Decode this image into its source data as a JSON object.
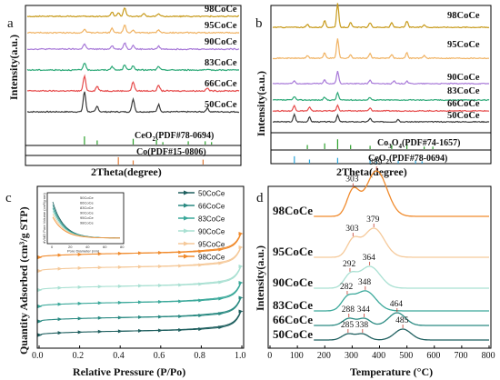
{
  "colors": {
    "c50": "#3a3a3a",
    "c66": "#e64a4a",
    "c83": "#2aa876",
    "c90": "#a778d8",
    "c95": "#f0b262",
    "c98": "#c79a1a",
    "ceo2": "#2ca02c",
    "co": "#e07b39",
    "co3o4": "#2ca02c",
    "ceo2b": "#2aa3d8",
    "sorb50": "#1f5f5f",
    "sorb66": "#2a8a82",
    "sorb83": "#3aa89a",
    "sorb90": "#a9e0d2",
    "sorb95": "#f5c99a",
    "sorb98": "#f08a2c"
  },
  "chart_data": [
    {
      "panel": "a",
      "type": "line",
      "xlabel": "2Theta(degree)",
      "ylabel": "Intensity(a.u.)",
      "series": [
        {
          "name": "50CoCe",
          "color_key": "c50",
          "peaks": [
            [
              0.27,
              22
            ],
            [
              0.33,
              6
            ],
            [
              0.5,
              14
            ],
            [
              0.62,
              8
            ],
            [
              0.85,
              4
            ]
          ]
        },
        {
          "name": "66CoCe",
          "color_key": "c66",
          "peaks": [
            [
              0.27,
              16
            ],
            [
              0.33,
              5
            ],
            [
              0.5,
              10
            ],
            [
              0.62,
              6
            ],
            [
              0.85,
              3
            ]
          ]
        },
        {
          "name": "83CoCe",
          "color_key": "c83",
          "peaks": [
            [
              0.27,
              8
            ],
            [
              0.4,
              4
            ],
            [
              0.46,
              6
            ],
            [
              0.5,
              5
            ],
            [
              0.62,
              4
            ]
          ]
        },
        {
          "name": "90CoCe",
          "color_key": "c90",
          "peaks": [
            [
              0.27,
              6
            ],
            [
              0.4,
              4
            ],
            [
              0.46,
              7
            ],
            [
              0.5,
              4
            ],
            [
              0.62,
              3
            ]
          ]
        },
        {
          "name": "95CoCe",
          "color_key": "c95",
          "peaks": [
            [
              0.27,
              4
            ],
            [
              0.4,
              5
            ],
            [
              0.46,
              9
            ],
            [
              0.5,
              3
            ],
            [
              0.62,
              3
            ]
          ]
        },
        {
          "name": "98CoCe",
          "color_key": "c98",
          "peaks": [
            [
              0.4,
              5
            ],
            [
              0.43,
              4
            ],
            [
              0.46,
              10
            ],
            [
              0.55,
              3
            ],
            [
              0.62,
              3
            ]
          ]
        }
      ],
      "references": [
        {
          "label": "CeO2(PDF#78-0694)",
          "color_key": "ceo2",
          "sticks": [
            [
              0.27,
              10
            ],
            [
              0.33,
              5
            ],
            [
              0.5,
              7
            ],
            [
              0.61,
              6
            ],
            [
              0.64,
              3
            ],
            [
              0.76,
              4
            ],
            [
              0.84,
              4
            ],
            [
              0.87,
              3
            ]
          ]
        },
        {
          "label": "Co(PDF#15-0806)",
          "color_key": "co",
          "sticks": [
            [
              0.43,
              9
            ],
            [
              0.5,
              5
            ],
            [
              0.83,
              6
            ]
          ]
        }
      ]
    },
    {
      "panel": "b",
      "type": "line",
      "xlabel": "2Theta(degree)",
      "ylabel": "Intensity(a.u.)",
      "series": [
        {
          "name": "50CoCe",
          "color_key": "c50",
          "peaks": [
            [
              0.1,
              8
            ],
            [
              0.17,
              5
            ],
            [
              0.3,
              7
            ],
            [
              0.45,
              4
            ],
            [
              0.58,
              3
            ]
          ]
        },
        {
          "name": "66CoCe",
          "color_key": "c66",
          "peaks": [
            [
              0.1,
              6
            ],
            [
              0.17,
              4
            ],
            [
              0.3,
              6
            ],
            [
              0.45,
              3
            ]
          ]
        },
        {
          "name": "83CoCe",
          "color_key": "c83",
          "peaks": [
            [
              0.1,
              4
            ],
            [
              0.24,
              3
            ],
            [
              0.3,
              8
            ],
            [
              0.45,
              3
            ]
          ]
        },
        {
          "name": "90CoCe",
          "color_key": "c90",
          "peaks": [
            [
              0.1,
              3
            ],
            [
              0.24,
              4
            ],
            [
              0.3,
              14
            ],
            [
              0.45,
              4
            ],
            [
              0.56,
              3
            ],
            [
              0.62,
              3
            ]
          ]
        },
        {
          "name": "95CoCe",
          "color_key": "c95",
          "peaks": [
            [
              0.16,
              3
            ],
            [
              0.24,
              6
            ],
            [
              0.3,
              22
            ],
            [
              0.36,
              4
            ],
            [
              0.45,
              5
            ],
            [
              0.55,
              4
            ],
            [
              0.62,
              6
            ],
            [
              0.7,
              3
            ]
          ]
        },
        {
          "name": "98CoCe",
          "color_key": "c98",
          "peaks": [
            [
              0.16,
              3
            ],
            [
              0.24,
              7
            ],
            [
              0.3,
              26
            ],
            [
              0.36,
              5
            ],
            [
              0.45,
              5
            ],
            [
              0.55,
              5
            ],
            [
              0.62,
              7
            ],
            [
              0.7,
              3
            ]
          ]
        }
      ],
      "references": [
        {
          "label": "Co3O4(PDF#74-1657)",
          "color_key": "co3o4",
          "sticks": [
            [
              0.16,
              5
            ],
            [
              0.24,
              7
            ],
            [
              0.3,
              12
            ],
            [
              0.36,
              5
            ],
            [
              0.45,
              4
            ],
            [
              0.55,
              5
            ],
            [
              0.62,
              7
            ],
            [
              0.7,
              3
            ],
            [
              0.74,
              3
            ]
          ]
        },
        {
          "label": "CeO2(PDF#78-0694)",
          "color_key": "ceo2b",
          "sticks": [
            [
              0.1,
              9
            ],
            [
              0.17,
              5
            ],
            [
              0.3,
              7
            ],
            [
              0.45,
              6
            ],
            [
              0.48,
              3
            ],
            [
              0.58,
              4
            ],
            [
              0.66,
              4
            ],
            [
              0.69,
              3
            ]
          ]
        }
      ]
    },
    {
      "panel": "c",
      "type": "line",
      "xlabel": "Relative Pressure (P/Po)",
      "ylabel": "Quantity Adsorbed (cm³/g STP)",
      "xlim": [
        0,
        1.0
      ],
      "xticks": [
        "0.0",
        "0.2",
        "0.4",
        "0.6",
        "0.8",
        "1.0"
      ],
      "series": [
        {
          "name": "50CoCe",
          "color_key": "sorb50",
          "base": 0.03
        },
        {
          "name": "66CoCe",
          "color_key": "sorb66",
          "base": 0.13
        },
        {
          "name": "83CoCe",
          "color_key": "sorb83",
          "base": 0.24
        },
        {
          "name": "90CoCe",
          "color_key": "sorb90",
          "base": 0.36
        },
        {
          "name": "95CoCe",
          "color_key": "sorb95",
          "base": 0.5
        },
        {
          "name": "98CoCe",
          "color_key": "sorb98",
          "base": 0.6
        }
      ],
      "inset": {
        "xlabel": "Pore Diameter (nm)",
        "ylabel": "dV/dD Pore Volume (cm³/g·nm)",
        "xticks": [
          "0",
          "20",
          "40",
          "60",
          "80"
        ],
        "legend": [
          "50CoCe",
          "66CoCe",
          "83CoCe",
          "90CoCe",
          "95CoCe",
          "98CoCe"
        ]
      }
    },
    {
      "panel": "d",
      "type": "line",
      "xlabel": "Temperature (°C)",
      "ylabel": "Intensity(a.u.)",
      "xlim": [
        0,
        800
      ],
      "xticks": [
        "0",
        "100",
        "200",
        "300",
        "400",
        "500",
        "600",
        "700",
        "800"
      ],
      "series": [
        {
          "name": "98CoCe",
          "color_key": "sorb98",
          "peaks": [
            {
              "t": 303,
              "label": "303"
            },
            {
              "t": 389,
              "label": "389"
            }
          ]
        },
        {
          "name": "95CoCe",
          "color_key": "sorb95",
          "peaks": [
            {
              "t": 303,
              "label": "303"
            },
            {
              "t": 379,
              "label": "379"
            }
          ]
        },
        {
          "name": "90CoCe",
          "color_key": "sorb90",
          "peaks": [
            {
              "t": 292,
              "label": "292"
            },
            {
              "t": 364,
              "label": "364"
            }
          ]
        },
        {
          "name": "83CoCe",
          "color_key": "sorb83",
          "peaks": [
            {
              "t": 282,
              "label": "282"
            },
            {
              "t": 348,
              "label": "348"
            }
          ]
        },
        {
          "name": "66CoCe",
          "color_key": "sorb66",
          "peaks": [
            {
              "t": 288,
              "label": "288"
            },
            {
              "t": 344,
              "label": "344"
            },
            {
              "t": 464,
              "label": "464"
            }
          ]
        },
        {
          "name": "50CoCe",
          "color_key": "sorb50",
          "peaks": [
            {
              "t": 285,
              "label": "285"
            },
            {
              "t": 338,
              "label": "338"
            },
            {
              "t": 485,
              "label": "485"
            }
          ]
        }
      ]
    }
  ],
  "panels": {
    "a_label": "a",
    "b_label": "b",
    "c_label": "c",
    "d_label": "d"
  },
  "ref_text": {
    "a_ceo2": "CeO",
    "a_ceo2_sub": "2",
    "a_ceo2_tail": "(PDF#78-0694)",
    "a_co": "Co(PDF#15-0806)",
    "b_co3o4": "Co",
    "b_co3o4_sub1": "3",
    "b_co3o4_mid": "O",
    "b_co3o4_sub2": "4",
    "b_co3o4_tail": "(PDF#74-1657)",
    "b_ceo2": "CeO",
    "b_ceo2_sub": "2",
    "b_ceo2_tail": "(PDF#78-0694)"
  }
}
